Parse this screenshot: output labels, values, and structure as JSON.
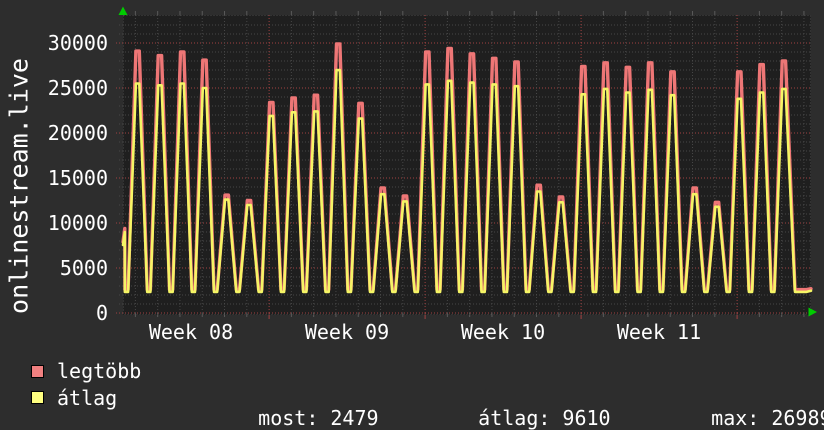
{
  "chart_data": {
    "type": "line",
    "title": "",
    "ylabel": "onlinestream.live",
    "ylim": [
      0,
      33000
    ],
    "y_tick_step": 5000,
    "y_ticks": [
      "30000",
      "25000",
      "20000",
      "15000",
      "10000",
      "5000",
      "0"
    ],
    "x_tick_unit": "day",
    "week_labels": [
      "Week 08",
      "Week 09",
      "Week 10",
      "Week 11"
    ],
    "series": [
      {
        "name": "legtöbb",
        "role": "daily maximum line",
        "color": "#ee7676"
      },
      {
        "name": "átlag",
        "role": "daily average line",
        "color": "#f5f565"
      }
    ],
    "days": [
      {
        "max": 29100,
        "avg": 25500
      },
      {
        "max": 28600,
        "avg": 25300
      },
      {
        "max": 29000,
        "avg": 25500
      },
      {
        "max": 28100,
        "avg": 25000
      },
      {
        "max": 13100,
        "avg": 12600
      },
      {
        "max": 12500,
        "avg": 12000
      },
      {
        "max": 23400,
        "avg": 21900
      },
      {
        "max": 23900,
        "avg": 22300
      },
      {
        "max": 24200,
        "avg": 22400
      },
      {
        "max": 29900,
        "avg": 26989
      },
      {
        "max": 23300,
        "avg": 21600
      },
      {
        "max": 13900,
        "avg": 13200
      },
      {
        "max": 13000,
        "avg": 12400
      },
      {
        "max": 29000,
        "avg": 25400
      },
      {
        "max": 29400,
        "avg": 25800
      },
      {
        "max": 28800,
        "avg": 25600
      },
      {
        "max": 28300,
        "avg": 25400
      },
      {
        "max": 27900,
        "avg": 25200
      },
      {
        "max": 14200,
        "avg": 13500
      },
      {
        "max": 12900,
        "avg": 12300
      },
      {
        "max": 27400,
        "avg": 24300
      },
      {
        "max": 27800,
        "avg": 24900
      },
      {
        "max": 27300,
        "avg": 24500
      },
      {
        "max": 27800,
        "avg": 24800
      },
      {
        "max": 26800,
        "avg": 24200
      },
      {
        "max": 13900,
        "avg": 13200
      },
      {
        "max": 12300,
        "avg": 11800
      },
      {
        "max": 26800,
        "avg": 23800
      },
      {
        "max": 27600,
        "avg": 24500
      },
      {
        "max": 28000,
        "avg": 24900
      }
    ],
    "leading_edge": {
      "max": 9400,
      "avg": 9000
    },
    "trough": {
      "max": 2600,
      "avg": 2350
    },
    "right_edge": {
      "max": 2700,
      "avg": 2479
    },
    "stats": [
      {
        "label": "most:",
        "value": "2479"
      },
      {
        "label": "átlag:",
        "value": "9610"
      },
      {
        "label": "max:",
        "value": "26989"
      }
    ]
  },
  "legend": {
    "swatches": [
      "#f08080",
      "#ffff80"
    ]
  },
  "colors": {
    "background": "#2d2d2d",
    "plot_background": "#1f1f1f",
    "grid_minor": "#474747",
    "grid_major": "#a04141",
    "tick_minor": "#5a5a5a",
    "text": "#ffffff",
    "axis_arrow": "#00cc00"
  }
}
